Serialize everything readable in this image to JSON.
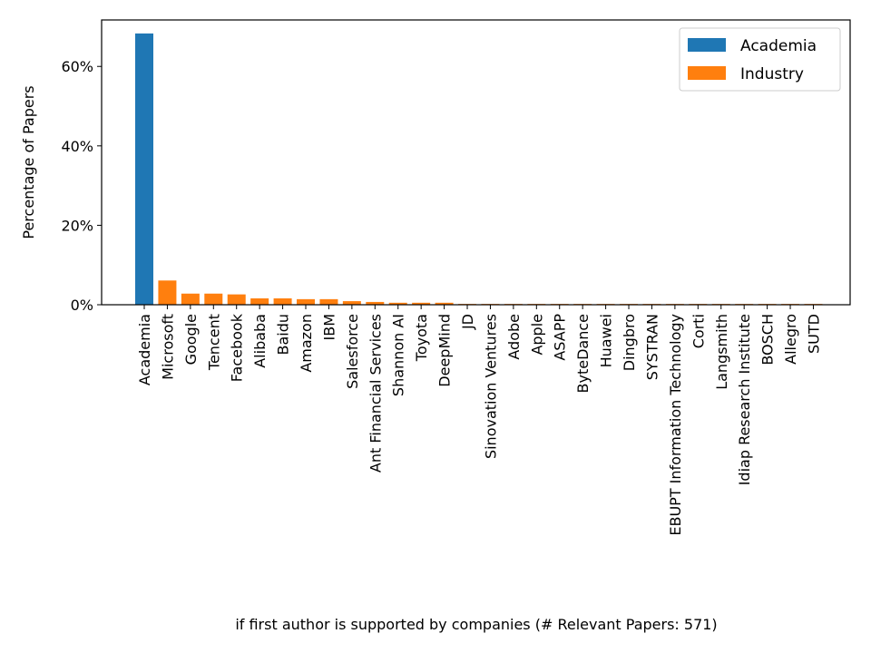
{
  "chart_data": {
    "type": "bar",
    "categories": [
      "Academia",
      "Microsoft",
      "Google",
      "Tencent",
      "Facebook",
      "Alibaba",
      "Baidu",
      "Amazon",
      "IBM",
      "Salesforce",
      "Ant Financial Services",
      "Shannon AI",
      "Toyota",
      "DeepMind",
      "JD",
      "Sinovation Ventures",
      "Adobe",
      "Apple",
      "ASAPP",
      "ByteDance",
      "Huawei",
      "Dingbro",
      "SYSTRAN",
      "EBUPT Information Technology",
      "Corti",
      "Langsmith",
      "Idiap Research Institute",
      "BOSCH",
      "Allegro",
      "SUTD"
    ],
    "series": [
      {
        "name": "Academia",
        "color": "#1f77b4",
        "values": [
          68.3,
          0,
          0,
          0,
          0,
          0,
          0,
          0,
          0,
          0,
          0,
          0,
          0,
          0,
          0,
          0,
          0,
          0,
          0,
          0,
          0,
          0,
          0,
          0,
          0,
          0,
          0,
          0,
          0,
          0
        ]
      },
      {
        "name": "Industry",
        "color": "#ff7f0e",
        "values": [
          0,
          6.1,
          2.8,
          2.8,
          2.6,
          1.6,
          1.6,
          1.4,
          1.4,
          0.9,
          0.7,
          0.5,
          0.5,
          0.5,
          0.2,
          0.2,
          0.2,
          0.2,
          0.2,
          0.2,
          0.2,
          0.2,
          0.2,
          0.2,
          0.2,
          0.2,
          0.2,
          0.2,
          0.2,
          0.2
        ]
      }
    ],
    "xlabel": "if first author is supported by companies (# Relevant Papers: 571)",
    "ylabel": "Percentage of Papers",
    "ylim": [
      0,
      71.7
    ],
    "yticks": [
      0,
      20,
      40,
      60
    ],
    "ytick_labels": [
      "0%",
      "20%",
      "40%",
      "60%"
    ],
    "grid": false,
    "legend_position": "top-right"
  }
}
